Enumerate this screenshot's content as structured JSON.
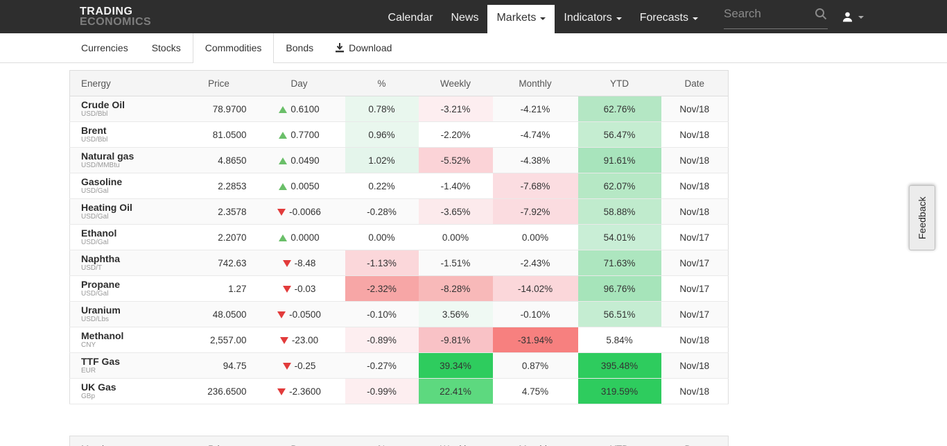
{
  "navbar": {
    "logo_line1": "TRADING",
    "logo_line2": "ECONOMICS",
    "items": [
      {
        "label": "Calendar",
        "active": false,
        "caret": false
      },
      {
        "label": "News",
        "active": false,
        "caret": false
      },
      {
        "label": "Markets",
        "active": true,
        "caret": true
      },
      {
        "label": "Indicators",
        "active": false,
        "caret": true
      },
      {
        "label": "Forecasts",
        "active": false,
        "caret": true
      }
    ],
    "search_placeholder": "Search"
  },
  "tabs": {
    "items": [
      {
        "label": "Currencies",
        "active": false
      },
      {
        "label": "Stocks",
        "active": false
      },
      {
        "label": "Commodities",
        "active": true
      },
      {
        "label": "Bonds",
        "active": false
      }
    ],
    "download_label": "Download"
  },
  "feedback_label": "Feedback",
  "colors": {
    "navbar_bg": "#2e2e2e",
    "up_triangle": "#6abf69",
    "down_triangle": "#e23b3b",
    "bright_green": "#2ecc5e",
    "mid_green": "#5dd97f",
    "header_bg": "#f5f5f5"
  },
  "energy_table": {
    "headers": [
      "Energy",
      "Price",
      "Day",
      "%",
      "Weekly",
      "Monthly",
      "YTD",
      "Date"
    ],
    "rows": [
      {
        "name": "Crude Oil",
        "unit": "USD/Bbl",
        "price": "78.9700",
        "direction": "up",
        "day": "0.6100",
        "pct": {
          "text": "0.78%",
          "bg": "#e9f7ee"
        },
        "weekly": {
          "text": "-3.21%",
          "bg": "#fdeef0"
        },
        "monthly": {
          "text": "-4.21%",
          "bg": ""
        },
        "ytd": {
          "text": "62.76%",
          "bg": "#b4e7c4"
        },
        "date": "Nov/18"
      },
      {
        "name": "Brent",
        "unit": "USD/Bbl",
        "price": "81.0500",
        "direction": "up",
        "day": "0.7700",
        "pct": {
          "text": "0.96%",
          "bg": "#e9f7ee"
        },
        "weekly": {
          "text": "-2.20%",
          "bg": ""
        },
        "monthly": {
          "text": "-4.74%",
          "bg": ""
        },
        "ytd": {
          "text": "56.47%",
          "bg": "#c5edd1"
        },
        "date": "Nov/18"
      },
      {
        "name": "Natural gas",
        "unit": "USD/MMBtu",
        "price": "4.8650",
        "direction": "up",
        "day": "0.0490",
        "pct": {
          "text": "1.02%",
          "bg": "#e4f5eb"
        },
        "weekly": {
          "text": "-5.52%",
          "bg": "#fbd3d7"
        },
        "monthly": {
          "text": "-4.38%",
          "bg": ""
        },
        "ytd": {
          "text": "91.61%",
          "bg": "#a8e4bc"
        },
        "date": "Nov/18"
      },
      {
        "name": "Gasoline",
        "unit": "USD/Gal",
        "price": "2.2853",
        "direction": "up",
        "day": "0.0050",
        "pct": {
          "text": "0.22%",
          "bg": ""
        },
        "weekly": {
          "text": "-1.40%",
          "bg": ""
        },
        "monthly": {
          "text": "-7.68%",
          "bg": "#fbdde1"
        },
        "ytd": {
          "text": "62.07%",
          "bg": "#b6e8c5"
        },
        "date": "Nov/18"
      },
      {
        "name": "Heating Oil",
        "unit": "USD/Gal",
        "price": "2.3578",
        "direction": "down",
        "day": "-0.0066",
        "pct": {
          "text": "-0.28%",
          "bg": ""
        },
        "weekly": {
          "text": "-3.65%",
          "bg": "#fceaec"
        },
        "monthly": {
          "text": "-7.92%",
          "bg": "#fbdce0"
        },
        "ytd": {
          "text": "58.88%",
          "bg": "#c0ebcd"
        },
        "date": "Nov/18"
      },
      {
        "name": "Ethanol",
        "unit": "USD/Gal",
        "price": "2.2070",
        "direction": "up",
        "day": "0.0000",
        "pct": {
          "text": "0.00%",
          "bg": ""
        },
        "weekly": {
          "text": "0.00%",
          "bg": ""
        },
        "monthly": {
          "text": "0.00%",
          "bg": ""
        },
        "ytd": {
          "text": "54.01%",
          "bg": "#c9eed6"
        },
        "date": "Nov/17"
      },
      {
        "name": "Naphtha",
        "unit": "USD/T",
        "price": "742.63",
        "direction": "down",
        "day": "-8.48",
        "pct": {
          "text": "-1.13%",
          "bg": "#fbd7da"
        },
        "weekly": {
          "text": "-1.51%",
          "bg": ""
        },
        "monthly": {
          "text": "-2.43%",
          "bg": ""
        },
        "ytd": {
          "text": "71.63%",
          "bg": "#ade6bf"
        },
        "date": "Nov/17"
      },
      {
        "name": "Propane",
        "unit": "USD/Gal",
        "price": "1.27",
        "direction": "down",
        "day": "-0.03",
        "pct": {
          "text": "-2.32%",
          "bg": "#f7a6a6"
        },
        "weekly": {
          "text": "-8.28%",
          "bg": "#f8b9b9"
        },
        "monthly": {
          "text": "-14.02%",
          "bg": "#fbd7da"
        },
        "ytd": {
          "text": "96.76%",
          "bg": "#a6e4ba"
        },
        "date": "Nov/17"
      },
      {
        "name": "Uranium",
        "unit": "USD/Lbs",
        "price": "48.0500",
        "direction": "down",
        "day": "-0.0500",
        "pct": {
          "text": "-0.10%",
          "bg": ""
        },
        "weekly": {
          "text": "3.56%",
          "bg": "#eff9f3"
        },
        "monthly": {
          "text": "-0.10%",
          "bg": ""
        },
        "ytd": {
          "text": "56.51%",
          "bg": "#c5edd2"
        },
        "date": "Nov/17"
      },
      {
        "name": "Methanol",
        "unit": "CNY",
        "price": "2,557.00",
        "direction": "down",
        "day": "-23.00",
        "pct": {
          "text": "-0.89%",
          "bg": "#fdeef0"
        },
        "weekly": {
          "text": "-9.81%",
          "bg": "#f9c2c6"
        },
        "monthly": {
          "text": "-31.94%",
          "bg": "#f7807f"
        },
        "ytd": {
          "text": "5.84%",
          "bg": ""
        },
        "date": "Nov/18"
      },
      {
        "name": "TTF Gas",
        "unit": "EUR",
        "price": "94.75",
        "direction": "down",
        "day": "-0.25",
        "pct": {
          "text": "-0.27%",
          "bg": ""
        },
        "weekly": {
          "text": "39.34%",
          "bg": "#2ecc5e"
        },
        "monthly": {
          "text": "0.87%",
          "bg": ""
        },
        "ytd": {
          "text": "395.48%",
          "bg": "#2ecc5e"
        },
        "date": "Nov/18"
      },
      {
        "name": "UK Gas",
        "unit": "GBp",
        "price": "236.6500",
        "direction": "down",
        "day": "-2.3600",
        "pct": {
          "text": "-0.99%",
          "bg": "#fdeef0"
        },
        "weekly": {
          "text": "22.41%",
          "bg": "#5dd97f"
        },
        "monthly": {
          "text": "4.75%",
          "bg": ""
        },
        "ytd": {
          "text": "319.59%",
          "bg": "#2ecc5e"
        },
        "date": "Nov/18"
      }
    ]
  },
  "metals_table": {
    "headers": [
      "Metals",
      "Price",
      "Day",
      "%",
      "Weekly",
      "Monthly",
      "YTD",
      "Date"
    ]
  }
}
